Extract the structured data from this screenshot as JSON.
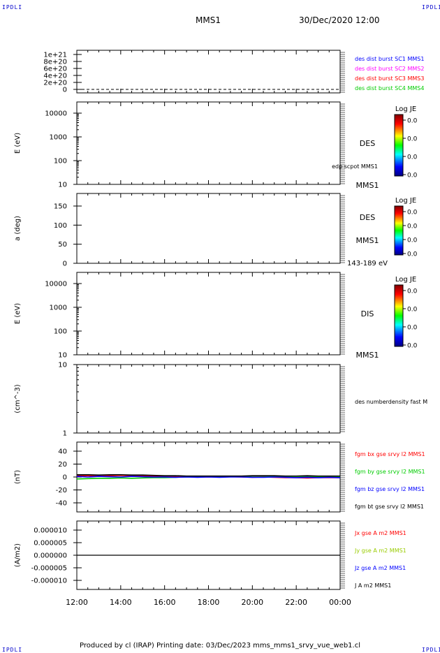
{
  "header": {
    "corner_left": "IPDLI",
    "corner_right": "IPDLI",
    "spacecraft": "MMS1",
    "datetime": "30/Dec/2020 12:00",
    "bottom_left": "IPDLI",
    "bottom_right": "IPDLI"
  },
  "footer": {
    "text": "Produced by cl (IRAP)   Printing date: 03/Dec/2023   mms_mms1_srvy_vue_web1.cl"
  },
  "chart_data": [
    {
      "type": "line",
      "ylabel": "",
      "xlim": [
        12,
        24
      ],
      "ylim": [
        -1e+19,
        1.1e+21
      ],
      "yticks": [
        "1e+21",
        "8e+20",
        "6e+20",
        "4e+20",
        "2e+20",
        "0"
      ],
      "ytick_values": [
        1e+21,
        8e+20,
        6e+20,
        4e+20,
        2e+20,
        0
      ],
      "legend": [
        {
          "label": "des dist burst SC1 MMS1",
          "color": "#0000ff"
        },
        {
          "label": "des dist burst SC2 MMS2",
          "color": "#ff00ff"
        },
        {
          "label": "des dist burst SC3 MMS3",
          "color": "#ff0000"
        },
        {
          "label": "des dist burst SC4 MMS4",
          "color": "#00cc00"
        }
      ],
      "series": [
        {
          "values": [
            0,
            0
          ]
        }
      ]
    },
    {
      "type": "heatmap",
      "ylabel": "E (eV)",
      "scale": "log",
      "yticks": [
        "10000",
        "1000",
        "100",
        "10"
      ],
      "right_labels": [
        "DES",
        "edp scpot MMS1",
        "MMS1"
      ],
      "colorbar": {
        "title": "Log JE",
        "ticks": [
          "0.0",
          "0.0",
          "0.0",
          "0.0"
        ]
      }
    },
    {
      "type": "heatmap",
      "ylabel": "a (deg)",
      "yticks": [
        "150",
        "100",
        "50",
        "0"
      ],
      "right_labels": [
        "DES",
        "MMS1",
        "143-189 eV"
      ],
      "colorbar": {
        "title": "Log JE",
        "ticks": [
          "0.0",
          "0.0",
          "0.0",
          "0.0"
        ]
      }
    },
    {
      "type": "heatmap",
      "ylabel": "E (eV)",
      "scale": "log",
      "yticks": [
        "10000",
        "1000",
        "100",
        "10"
      ],
      "right_labels": [
        "DIS",
        "MMS1"
      ],
      "colorbar": {
        "title": "Log JE",
        "ticks": [
          "0.0",
          "0.0",
          "0.0",
          "0.0"
        ]
      }
    },
    {
      "type": "line",
      "ylabel": "(cm^-3)",
      "scale": "log",
      "yticks": [
        "10",
        "1"
      ],
      "legend": [
        {
          "label": "des numberdensity fast M",
          "color": "#000000"
        }
      ]
    },
    {
      "type": "line",
      "ylabel": "(nT)",
      "ylim": [
        -50,
        50
      ],
      "yticks": [
        "40",
        "20",
        "0",
        "-20",
        "-40"
      ],
      "ytick_values": [
        40,
        20,
        0,
        -20,
        -40
      ],
      "xlim": [
        12,
        24
      ],
      "legend": [
        {
          "label": "fgm bx gse srvy l2 MMS1",
          "color": "#ff0000"
        },
        {
          "label": "fgm by gse srvy l2 MMS1",
          "color": "#00cc00"
        },
        {
          "label": "fgm bz gse srvy l2 MMS1",
          "color": "#0000ff"
        },
        {
          "label": "fgm bt gse srvy l2 MMS1",
          "color": "#000000"
        }
      ],
      "x": [
        12,
        12.5,
        13,
        13.5,
        14,
        14.5,
        15,
        15.5,
        16,
        16.5,
        17,
        17.5,
        18,
        18.5,
        19,
        19.5,
        20,
        20.5,
        21,
        21.5,
        22,
        22.5,
        23,
        23.5,
        24
      ],
      "series": [
        {
          "name": "fgm bx gse srvy l2 MMS1",
          "values": [
            2,
            2,
            1.5,
            2,
            2.5,
            2,
            2,
            1,
            1,
            0.5,
            0.5,
            0,
            0,
            0.5,
            0.5,
            0,
            -0.5,
            0,
            -0.5,
            -1,
            -1,
            -1.5,
            -1,
            -1,
            -1
          ]
        },
        {
          "name": "fgm by gse srvy l2 MMS1",
          "values": [
            -3,
            -2.5,
            -2,
            -2,
            -1.5,
            -2,
            -1.5,
            -1,
            -1,
            -0.5,
            0,
            0,
            0.5,
            0.5,
            1,
            1,
            1.5,
            1.5,
            1.5,
            1,
            1,
            1,
            0.5,
            0.5,
            0
          ]
        },
        {
          "name": "fgm bz gse srvy l2 MMS1",
          "values": [
            1,
            0,
            1,
            0.5,
            0,
            1,
            0.5,
            0,
            0,
            -0.5,
            0,
            -0.5,
            0,
            -0.5,
            0,
            0,
            -0.5,
            -0.5,
            0,
            -0.5,
            -1,
            -0.5,
            -1,
            -0.5,
            -1
          ]
        },
        {
          "name": "fgm bt gse srvy l2 MMS1",
          "values": [
            3.5,
            3.5,
            3,
            3.5,
            3.5,
            3,
            3,
            2.5,
            2,
            2,
            1.5,
            1.5,
            1.5,
            1.5,
            1.5,
            1.5,
            2,
            2,
            2,
            1.5,
            1.5,
            2,
            1.5,
            1.5,
            1.5
          ]
        }
      ]
    },
    {
      "type": "line",
      "ylabel": "(A/m2)",
      "ylim": [
        -1e-05,
        1e-05
      ],
      "yticks": [
        "0.000010",
        "0.000005",
        "0.000000",
        "-0.000005",
        "-0.000010"
      ],
      "ytick_values": [
        1e-05,
        5e-06,
        0,
        -5e-06,
        -1e-05
      ],
      "xlim": [
        12,
        24
      ],
      "legend": [
        {
          "label": "Jx gse A m2 MMS1",
          "color": "#ff0000"
        },
        {
          "label": "Jy gse A m2 MMS1",
          "color": "#99cc00"
        },
        {
          "label": "Jz gse A m2 MMS1",
          "color": "#0000ff"
        },
        {
          "label": "J A m2 MMS1",
          "color": "#000000"
        }
      ],
      "x": [
        12,
        14,
        16,
        18,
        20,
        22,
        24
      ],
      "series": [
        {
          "name": "J A m2 MMS1",
          "values": [
            0,
            0,
            0,
            0,
            0,
            0,
            0
          ]
        }
      ]
    }
  ],
  "x_axis": {
    "ticks": [
      "12:00",
      "14:00",
      "16:00",
      "18:00",
      "20:00",
      "22:00",
      "00:00"
    ],
    "tick_hours": [
      12,
      14,
      16,
      18,
      20,
      22,
      24
    ]
  }
}
